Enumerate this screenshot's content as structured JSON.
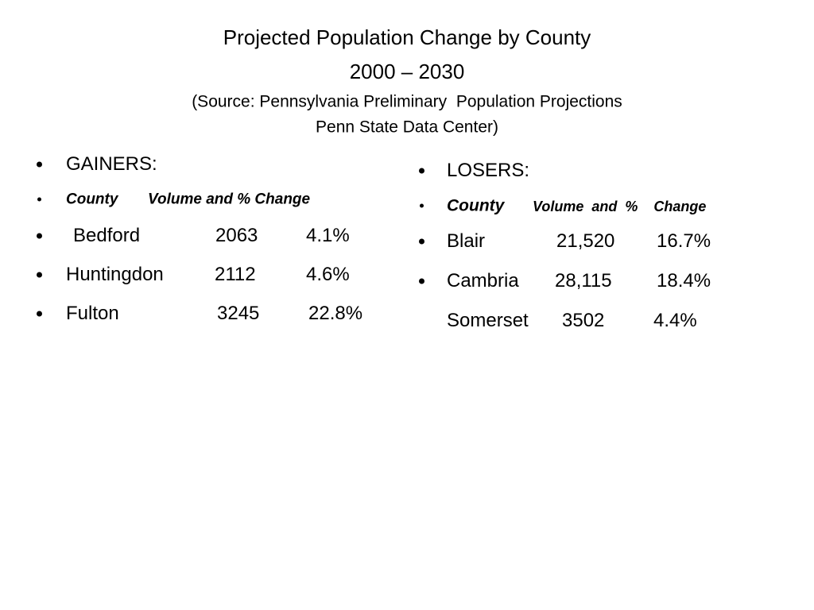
{
  "title": {
    "lines": [
      "Projected Population Change by County",
      "2000 – 2030",
      "(Source: Pennsylvania Preliminary  Population Projections",
      "Penn State Data Center)"
    ]
  },
  "gainers": {
    "heading": "GAINERS:",
    "columns": [
      "County",
      "Volume and % Change"
    ],
    "rows": [
      [
        "Bedford",
        "2063",
        "4.1%"
      ],
      [
        "Huntingdon",
        "2112",
        "4.6%"
      ],
      [
        "Fulton",
        "3245",
        "22.8%"
      ]
    ]
  },
  "losers": {
    "heading": "LOSERS:",
    "columns": [
      "County",
      "Volume  and  %    Change"
    ],
    "rows": [
      [
        "Blair",
        "21,520",
        "16.7%"
      ],
      [
        "Cambria",
        "28,115",
        "18.4%"
      ],
      [
        "Somerset",
        "3502",
        "4.4%"
      ]
    ]
  }
}
